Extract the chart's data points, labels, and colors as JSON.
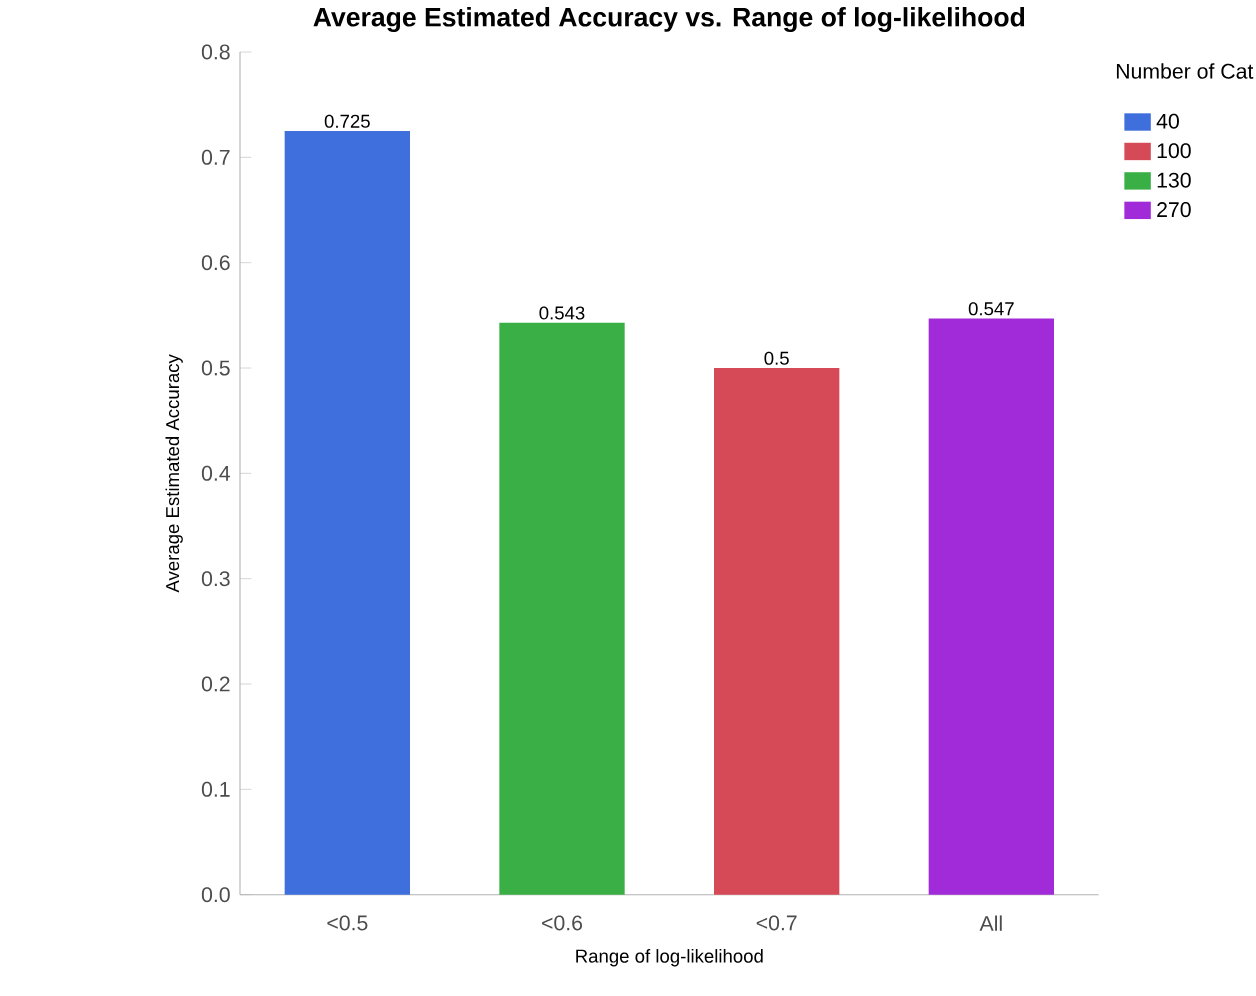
{
  "chart_data": {
    "type": "bar",
    "title": "Average Estimated Accuracy vs. Range of log-likelihood",
    "xlabel": "Range of log-likelihood",
    "ylabel": "Average Estimated Accuracy",
    "legend_title": "Number of Cat",
    "categories": [
      "<0.5",
      "<0.6",
      "<0.7",
      "All"
    ],
    "series": [
      {
        "name": "40",
        "color": "#3f6fdc",
        "values": [
          0.725,
          null,
          null,
          null
        ]
      },
      {
        "name": "100",
        "color": "#d64a57",
        "values": [
          null,
          null,
          0.5,
          null
        ]
      },
      {
        "name": "130",
        "color": "#3aaf45",
        "values": [
          null,
          0.543,
          null,
          null
        ]
      },
      {
        "name": "270",
        "color": "#a12bd8",
        "values": [
          null,
          null,
          null,
          0.547
        ]
      }
    ],
    "ylim": [
      0,
      0.8
    ],
    "yticks": [
      {
        "value": 0,
        "label": "0.0"
      },
      0.1,
      0.2,
      0.3,
      0.4,
      0.5,
      0.6,
      0.7,
      0.8
    ],
    "data_labels": true,
    "grid": false,
    "legend": "top right"
  }
}
